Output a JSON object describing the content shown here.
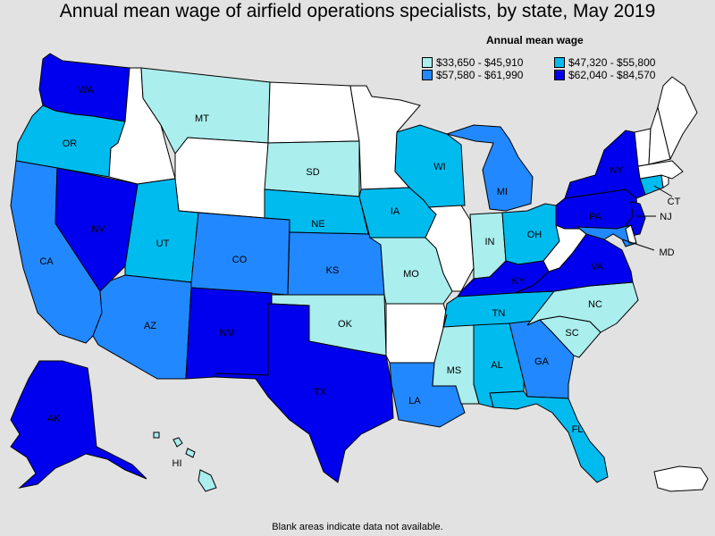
{
  "title": "Annual mean wage of airfield operations specialists, by state, May 2019",
  "legend": {
    "title": "Annual mean wage",
    "items": [
      {
        "label": "$33,650 - $45,910",
        "color": "#aaeeee"
      },
      {
        "label": "$47,320 - $55,800",
        "color": "#00bbee"
      },
      {
        "label": "$57,580 - $61,990",
        "color": "#2288ff"
      },
      {
        "label": "$62,040 - $84,570",
        "color": "#0000ee"
      }
    ]
  },
  "no_data_color": "#ffffff",
  "footnote": "Blank areas indicate data not available.",
  "states": {
    "WA": {
      "label": "WA",
      "tier": 3
    },
    "OR": {
      "label": "OR",
      "tier": 1
    },
    "CA": {
      "label": "CA",
      "tier": 2
    },
    "NV": {
      "label": "NV",
      "tier": 3
    },
    "ID": {
      "tier": null
    },
    "MT": {
      "label": "MT",
      "tier": 0
    },
    "WY": {
      "tier": null
    },
    "UT": {
      "label": "UT",
      "tier": 1
    },
    "CO": {
      "label": "CO",
      "tier": 2
    },
    "AZ": {
      "label": "AZ",
      "tier": 2
    },
    "NM": {
      "label": "NM",
      "tier": 3
    },
    "ND": {
      "tier": null
    },
    "SD": {
      "label": "SD",
      "tier": 0
    },
    "NE": {
      "label": "NE",
      "tier": 1
    },
    "KS": {
      "label": "KS",
      "tier": 2
    },
    "OK": {
      "label": "OK",
      "tier": 0
    },
    "TX": {
      "label": "TX",
      "tier": 3
    },
    "MN": {
      "tier": null
    },
    "IA": {
      "label": "IA",
      "tier": 1
    },
    "MO": {
      "label": "MO",
      "tier": 0
    },
    "AR": {
      "tier": null
    },
    "LA": {
      "label": "LA",
      "tier": 2
    },
    "WI": {
      "label": "WI",
      "tier": 1
    },
    "IL": {
      "tier": null
    },
    "MI": {
      "label": "MI",
      "tier": 2
    },
    "IN": {
      "label": "IN",
      "tier": 0
    },
    "OH": {
      "label": "OH",
      "tier": 1
    },
    "KY": {
      "label": "KY",
      "tier": 3
    },
    "TN": {
      "label": "TN",
      "tier": 1
    },
    "MS": {
      "label": "MS",
      "tier": 0
    },
    "AL": {
      "label": "AL",
      "tier": 1
    },
    "GA": {
      "label": "GA",
      "tier": 2
    },
    "FL": {
      "label": "FL",
      "tier": 1
    },
    "SC": {
      "label": "SC",
      "tier": 0
    },
    "NC": {
      "label": "NC",
      "tier": 0
    },
    "VA": {
      "label": "VA",
      "tier": 3
    },
    "WV": {
      "tier": null
    },
    "PA": {
      "label": "PA",
      "tier": 3
    },
    "NY": {
      "label": "NY",
      "tier": 3
    },
    "NJ": {
      "label": "NJ",
      "tier": 3
    },
    "MD": {
      "label": "MD",
      "tier": 2
    },
    "DE": {
      "tier": null
    },
    "CT": {
      "label": "CT",
      "tier": 1
    },
    "RI": {
      "tier": null
    },
    "MA": {
      "tier": null
    },
    "VT": {
      "tier": null
    },
    "NH": {
      "tier": null
    },
    "ME": {
      "tier": null
    },
    "AK": {
      "label": "AK",
      "tier": 3
    },
    "HI": {
      "label": "HI",
      "tier": 0
    },
    "PR": {
      "tier": null
    }
  }
}
